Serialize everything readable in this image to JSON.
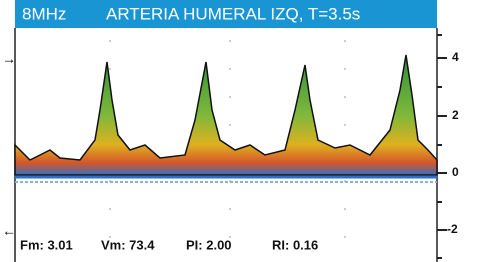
{
  "header": {
    "frequency": "8MHz",
    "title": "ARTERIA HUMERAL IZQ, T=3.5s"
  },
  "scale": {
    "ticks": [
      "4",
      "2",
      "0",
      "-2"
    ]
  },
  "readouts": [
    "Fm: 3.01",
    "Vm: 73.4",
    "PI: 2.00",
    "RI: 0.16"
  ]
}
